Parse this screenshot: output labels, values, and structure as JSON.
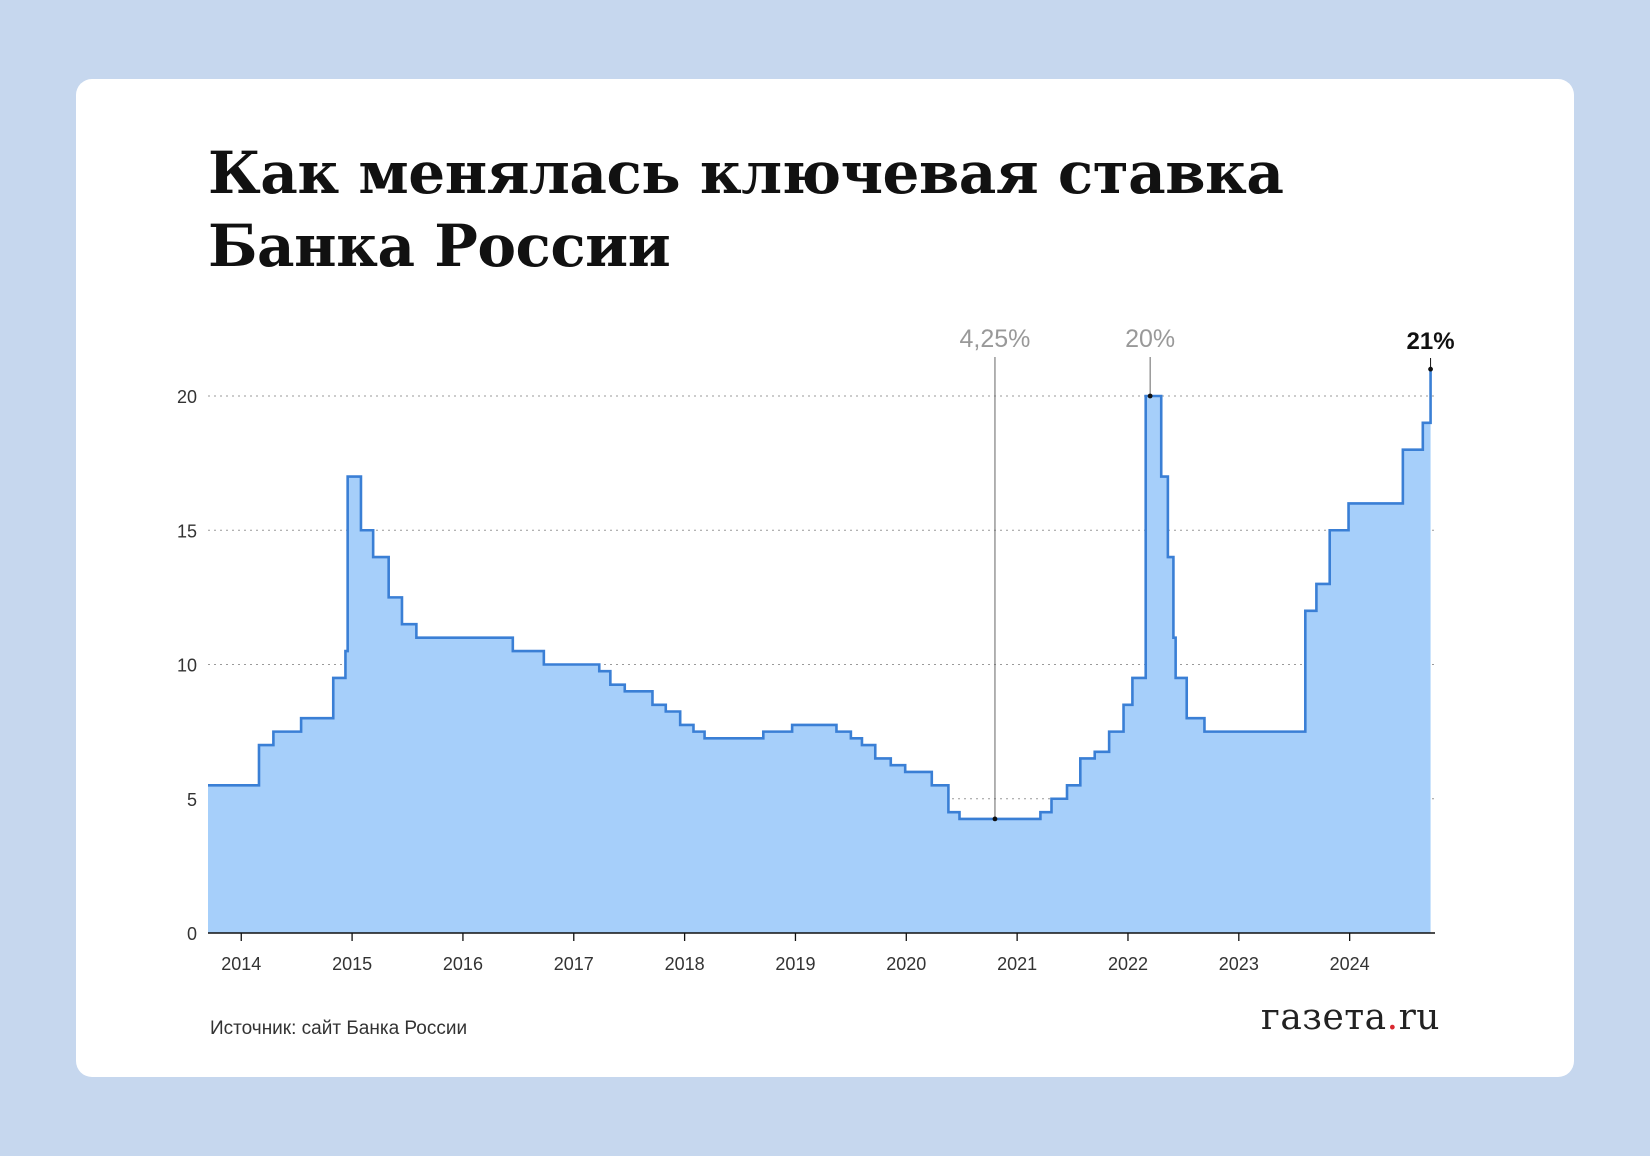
{
  "colors": {
    "background": "#c6d7ee",
    "card": "#ffffff",
    "line": "#3a7fd5",
    "fill": "#a6cffa",
    "annotation": "#999999",
    "highlight": "#111111",
    "logo_dot": "#d9282f"
  },
  "card": {
    "title_line1": "Как менялась ключевая ставка",
    "title_line2": "Банка России",
    "source": "Источник: сайт Банка России",
    "logo_main": "газета",
    "logo_dot": ".",
    "logo_tail": "ru"
  },
  "chart_data": {
    "type": "area",
    "title": "Как менялась ключевая ставка Банка России",
    "xlabel": "",
    "ylabel": "",
    "xlim": [
      2013.7,
      2024.77
    ],
    "ylim": [
      0,
      20
    ],
    "yticks": [
      0,
      5,
      10,
      15,
      20
    ],
    "xticks": [
      "2014",
      "2015",
      "2016",
      "2017",
      "2018",
      "2019",
      "2020",
      "2021",
      "2022",
      "2023",
      "2024"
    ],
    "grid": "horizontal-dotted",
    "step": true,
    "series": [
      {
        "points": [
          [
            2013.7,
            5.5
          ],
          [
            2014.16,
            7.0
          ],
          [
            2014.29,
            7.5
          ],
          [
            2014.54,
            8.0
          ],
          [
            2014.83,
            9.5
          ],
          [
            2014.94,
            10.5
          ],
          [
            2014.96,
            17.0
          ],
          [
            2015.08,
            15.0
          ],
          [
            2015.19,
            14.0
          ],
          [
            2015.33,
            12.5
          ],
          [
            2015.45,
            11.5
          ],
          [
            2015.58,
            11.0
          ],
          [
            2016.45,
            10.5
          ],
          [
            2016.73,
            10.0
          ],
          [
            2017.23,
            9.75
          ],
          [
            2017.33,
            9.25
          ],
          [
            2017.46,
            9.0
          ],
          [
            2017.71,
            8.5
          ],
          [
            2017.83,
            8.25
          ],
          [
            2017.96,
            7.75
          ],
          [
            2018.08,
            7.5
          ],
          [
            2018.18,
            7.25
          ],
          [
            2018.71,
            7.5
          ],
          [
            2018.97,
            7.75
          ],
          [
            2019.37,
            7.5
          ],
          [
            2019.5,
            7.25
          ],
          [
            2019.6,
            7.0
          ],
          [
            2019.72,
            6.5
          ],
          [
            2019.86,
            6.25
          ],
          [
            2019.99,
            6.0
          ],
          [
            2020.23,
            5.5
          ],
          [
            2020.38,
            4.5
          ],
          [
            2020.48,
            4.25
          ],
          [
            2021.21,
            4.5
          ],
          [
            2021.31,
            5.0
          ],
          [
            2021.45,
            5.5
          ],
          [
            2021.57,
            6.5
          ],
          [
            2021.7,
            6.75
          ],
          [
            2021.83,
            7.5
          ],
          [
            2021.96,
            8.5
          ],
          [
            2022.04,
            9.5
          ],
          [
            2022.16,
            20.0
          ],
          [
            2022.3,
            17.0
          ],
          [
            2022.36,
            14.0
          ],
          [
            2022.41,
            11.0
          ],
          [
            2022.43,
            9.5
          ],
          [
            2022.53,
            8.0
          ],
          [
            2022.69,
            7.5
          ],
          [
            2023.6,
            12.0
          ],
          [
            2023.7,
            13.0
          ],
          [
            2023.82,
            15.0
          ],
          [
            2023.99,
            16.0
          ],
          [
            2024.48,
            18.0
          ],
          [
            2024.66,
            19.0
          ],
          [
            2024.73,
            21.0
          ]
        ]
      }
    ],
    "annotations": [
      {
        "label": "4,25%",
        "x": 2020.8,
        "y": 4.25,
        "style": "muted",
        "leader": "long"
      },
      {
        "label": "20%",
        "x": 2022.2,
        "y": 20.0,
        "style": "muted",
        "leader": "short"
      },
      {
        "label": "21%",
        "x": 2024.73,
        "y": 21.0,
        "style": "bold",
        "leader": "short"
      }
    ]
  }
}
